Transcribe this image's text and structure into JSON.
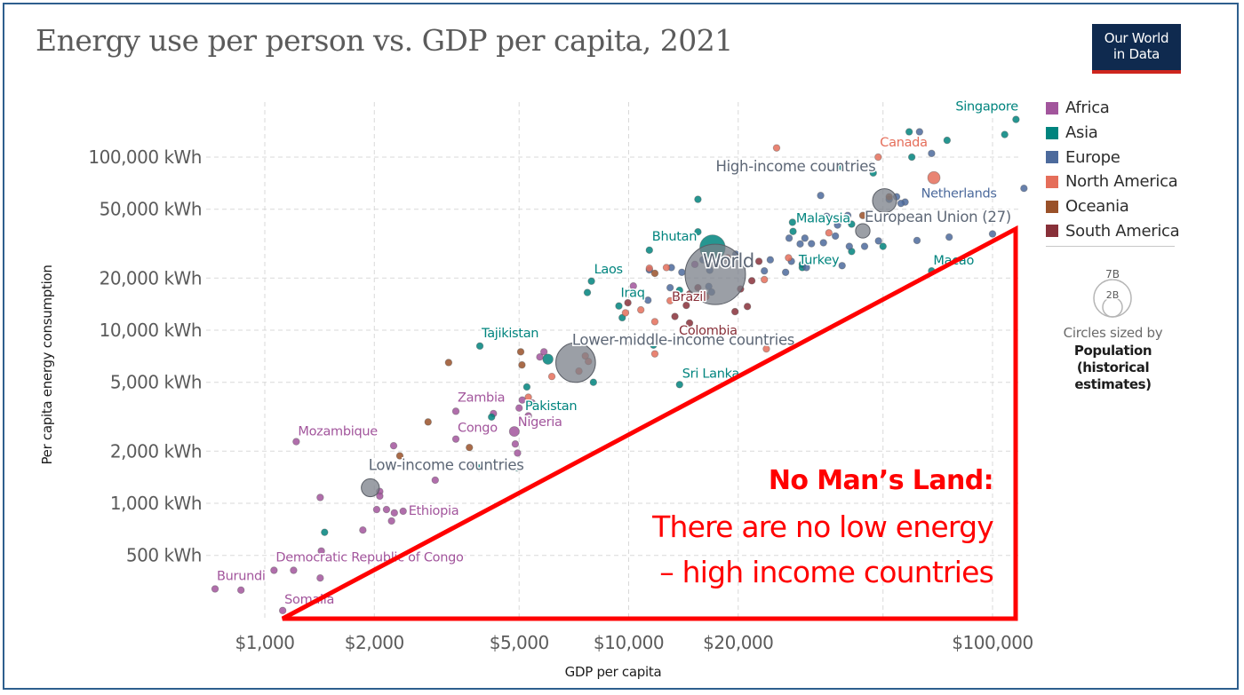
{
  "title": "Energy use per person vs. GDP per capita, 2021",
  "logo": {
    "line1": "Our World",
    "line2": "in Data"
  },
  "legend": {
    "items": [
      {
        "label": "Africa",
        "color": "#a2559c"
      },
      {
        "label": "Asia",
        "color": "#00847e"
      },
      {
        "label": "Europe",
        "color": "#4c6a9c"
      },
      {
        "label": "North America",
        "color": "#e56e5a"
      },
      {
        "label": "Oceania",
        "color": "#9a5129"
      },
      {
        "label": "South America",
        "color": "#883039"
      }
    ],
    "size_legend": {
      "large": "7B",
      "small": "2B",
      "caption": "Circles sized by",
      "variable_line1": "Population",
      "variable_line2": "(historical",
      "variable_line3": "estimates)"
    }
  },
  "annotation": {
    "heading": "No Man’s Land:",
    "line1": "There are no low energy",
    "line2": "– high income countries",
    "color": "#ff0000"
  },
  "chart_data": {
    "type": "scatter",
    "title": "Energy use per person vs. GDP per capita, 2021",
    "xlabel": "GDP per capita",
    "ylabel": "Per capita energy consumption",
    "x_scale": "log",
    "y_scale": "log",
    "xlim": [
      700,
      130000
    ],
    "ylim": [
      230,
      190000
    ],
    "x_ticks": [
      {
        "value": 1000,
        "label": "$1,000"
      },
      {
        "value": 2000,
        "label": "$2,000"
      },
      {
        "value": 5000,
        "label": "$5,000"
      },
      {
        "value": 10000,
        "label": "$10,000"
      },
      {
        "value": 20000,
        "label": "$20,000"
      },
      {
        "value": 100000,
        "label": "$100,000"
      }
    ],
    "y_ticks": [
      {
        "value": 100000,
        "label": "100,000 kWh"
      },
      {
        "value": 50000,
        "label": "50,000 kWh"
      },
      {
        "value": 20000,
        "label": "20,000 kWh"
      },
      {
        "value": 10000,
        "label": "10,000 kWh"
      },
      {
        "value": 5000,
        "label": "5,000 kWh"
      },
      {
        "value": 2000,
        "label": "2,000 kWh"
      },
      {
        "value": 1000,
        "label": "1,000 kWh"
      },
      {
        "value": 500,
        "label": "500 kWh"
      }
    ],
    "x_grid_values": [
      1000,
      2000,
      5000,
      10000,
      20000,
      50000,
      100000
    ],
    "grid": true,
    "legend_position": "right",
    "size_variable": "Population (historical estimates)",
    "aggregates": [
      {
        "name": "World",
        "x": 17300,
        "y": 21000,
        "pop": 7900000000,
        "label_offset": "above-right"
      },
      {
        "name": "High-income countries",
        "x": 50500,
        "y": 56000,
        "pop": 1250000000
      },
      {
        "name": "European Union (27)",
        "x": 44000,
        "y": 37500,
        "pop": 450000000
      },
      {
        "name": "Lower-middle-income countries",
        "x": 7150,
        "y": 6500,
        "pop": 3400000000
      },
      {
        "name": "Low-income countries",
        "x": 1950,
        "y": 1230,
        "pop": 700000000
      }
    ],
    "series": [
      {
        "name": "Africa",
        "points": [
          {
            "label": "Mozambique",
            "x": 1220,
            "y": 2270
          },
          {
            "label": "Zambia",
            "x": 3350,
            "y": 3400
          },
          {
            "label": "Congo",
            "x": 3350,
            "y": 2350
          },
          {
            "label": "Nigeria",
            "x": 4850,
            "y": 2600,
            "pop": 213000000
          },
          {
            "label": "Ethiopia",
            "x": 2400,
            "y": 900
          },
          {
            "label": "Democratic Republic of Congo",
            "x": 1060,
            "y": 410
          },
          {
            "label": "Burundi",
            "x": 730,
            "y": 320
          },
          {
            "label": "Somalia",
            "x": 1120,
            "y": 240
          },
          {
            "x": 860,
            "y": 315
          },
          {
            "x": 1200,
            "y": 410
          },
          {
            "x": 1430,
            "y": 530
          },
          {
            "x": 1420,
            "y": 370
          },
          {
            "x": 1860,
            "y": 700
          },
          {
            "x": 1420,
            "y": 1080
          },
          {
            "x": 2070,
            "y": 1170
          },
          {
            "x": 2070,
            "y": 1100
          },
          {
            "x": 2030,
            "y": 920
          },
          {
            "x": 2160,
            "y": 920
          },
          {
            "x": 2270,
            "y": 880
          },
          {
            "x": 2230,
            "y": 790
          },
          {
            "x": 2260,
            "y": 2150
          },
          {
            "x": 2940,
            "y": 1360
          },
          {
            "x": 4250,
            "y": 3300
          },
          {
            "x": 4880,
            "y": 2200
          },
          {
            "x": 4950,
            "y": 1950
          },
          {
            "x": 5100,
            "y": 3950
          },
          {
            "x": 5000,
            "y": 3550
          },
          {
            "x": 3760,
            "y": 1650
          },
          {
            "x": 5430,
            "y": 3800
          },
          {
            "x": 5300,
            "y": 3200
          },
          {
            "x": 5700,
            "y": 7000
          },
          {
            "x": 5850,
            "y": 7500
          },
          {
            "x": 10300,
            "y": 18000
          },
          {
            "x": 15200,
            "y": 24000
          },
          {
            "x": 17800,
            "y": 25500
          }
        ]
      },
      {
        "name": "Asia",
        "points": [
          {
            "label": "Singapore",
            "x": 116000,
            "y": 165000
          },
          {
            "label": "Malaysia",
            "x": 28200,
            "y": 42000
          },
          {
            "label": "Bhutan",
            "x": 11400,
            "y": 29000
          },
          {
            "label": "Laos",
            "x": 7900,
            "y": 19200
          },
          {
            "label": "Iraq",
            "x": 9400,
            "y": 13800
          },
          {
            "label": "Tajikistan",
            "x": 3900,
            "y": 8100
          },
          {
            "label": "Pakistan",
            "x": 5250,
            "y": 4700
          },
          {
            "label": "Turkey",
            "x": 30000,
            "y": 23000
          },
          {
            "label": "Macao",
            "x": 68000,
            "y": 22000
          },
          {
            "label": "Sri Lanka",
            "x": 13800,
            "y": 4850
          },
          {
            "x": 1460,
            "y": 680
          },
          {
            "x": 3880,
            "y": 1600
          },
          {
            "x": 4940,
            "y": 1600
          },
          {
            "x": 4200,
            "y": 3150
          },
          {
            "x": 5480,
            "y": 3700
          },
          {
            "x": 6000,
            "y": 6800,
            "pop": 230000000
          },
          {
            "x": 7700,
            "y": 16500
          },
          {
            "x": 8000,
            "y": 5000
          },
          {
            "x": 9600,
            "y": 11800
          },
          {
            "x": 11700,
            "y": 8200
          },
          {
            "x": 15500,
            "y": 57000
          },
          {
            "x": 15500,
            "y": 37000
          },
          {
            "x": 17000,
            "y": 30000,
            "pop": 1410000000
          },
          {
            "x": 13800,
            "y": 17000
          },
          {
            "x": 16200,
            "y": 16000
          },
          {
            "x": 38400,
            "y": 88000
          },
          {
            "x": 46500,
            "y": 90000
          },
          {
            "x": 47000,
            "y": 81000
          },
          {
            "x": 60000,
            "y": 100000
          },
          {
            "x": 59000,
            "y": 140000
          },
          {
            "x": 75000,
            "y": 125000
          },
          {
            "x": 108000,
            "y": 135000
          },
          {
            "x": 28300,
            "y": 37200
          },
          {
            "x": 41000,
            "y": 41000
          },
          {
            "x": 41000,
            "y": 28500
          },
          {
            "x": 50000,
            "y": 30500
          },
          {
            "x": 30000,
            "y": 24000
          }
        ]
      },
      {
        "name": "Europe",
        "points": [
          {
            "label": "Netherlands",
            "x": 57500,
            "y": 55000
          },
          {
            "x": 63000,
            "y": 140000
          },
          {
            "x": 68000,
            "y": 105000
          },
          {
            "x": 52000,
            "y": 57000
          },
          {
            "x": 54500,
            "y": 59000
          },
          {
            "x": 56000,
            "y": 54000
          },
          {
            "x": 122000,
            "y": 66000
          },
          {
            "x": 33700,
            "y": 60000
          },
          {
            "x": 35000,
            "y": 45500
          },
          {
            "x": 37600,
            "y": 44500
          },
          {
            "x": 37500,
            "y": 40500
          },
          {
            "x": 40000,
            "y": 46000
          },
          {
            "x": 37000,
            "y": 35000
          },
          {
            "x": 30500,
            "y": 34000
          },
          {
            "x": 27600,
            "y": 34000
          },
          {
            "x": 29600,
            "y": 31500
          },
          {
            "x": 31800,
            "y": 31600
          },
          {
            "x": 34300,
            "y": 32000
          },
          {
            "x": 40400,
            "y": 30500
          },
          {
            "x": 44500,
            "y": 30500
          },
          {
            "x": 48600,
            "y": 32800
          },
          {
            "x": 62000,
            "y": 33000
          },
          {
            "x": 76000,
            "y": 34500
          },
          {
            "x": 100000,
            "y": 36000
          },
          {
            "x": 24500,
            "y": 25500
          },
          {
            "x": 27000,
            "y": 21600
          },
          {
            "x": 28000,
            "y": 25000
          },
          {
            "x": 30800,
            "y": 23000
          },
          {
            "x": 38600,
            "y": 23600
          },
          {
            "x": 23600,
            "y": 22000
          },
          {
            "x": 19700,
            "y": 27500
          },
          {
            "x": 16700,
            "y": 22200
          },
          {
            "x": 16000,
            "y": 25500
          },
          {
            "x": 14000,
            "y": 21600
          },
          {
            "x": 11300,
            "y": 14900
          },
          {
            "x": 13000,
            "y": 17600
          },
          {
            "x": 16600,
            "y": 17900
          },
          {
            "x": 16900,
            "y": 16600
          },
          {
            "x": 11400,
            "y": 22300
          },
          {
            "x": 13100,
            "y": 23000
          }
        ]
      },
      {
        "name": "North America",
        "points": [
          {
            "label": "Canada",
            "x": 48500,
            "y": 100000
          },
          {
            "x": 69000,
            "y": 76000,
            "pop": 332000000
          },
          {
            "x": 25500,
            "y": 113000
          },
          {
            "x": 35500,
            "y": 36500
          },
          {
            "x": 23600,
            "y": 19600
          },
          {
            "x": 27500,
            "y": 26200
          },
          {
            "x": 12700,
            "y": 23000
          },
          {
            "x": 11400,
            "y": 22800
          },
          {
            "x": 9800,
            "y": 12600
          },
          {
            "x": 10800,
            "y": 13100
          },
          {
            "x": 11800,
            "y": 11200
          },
          {
            "x": 11800,
            "y": 7300
          },
          {
            "x": 13000,
            "y": 14800
          },
          {
            "x": 16300,
            "y": 15600
          },
          {
            "x": 23900,
            "y": 7800
          },
          {
            "x": 7600,
            "y": 7100
          },
          {
            "x": 7300,
            "y": 5800
          },
          {
            "x": 7750,
            "y": 6600
          },
          {
            "x": 5300,
            "y": 4100
          },
          {
            "x": 6150,
            "y": 5400
          },
          {
            "x": 18700,
            "y": 26200
          }
        ]
      },
      {
        "name": "Oceania",
        "points": [
          {
            "x": 52000,
            "y": 59000
          },
          {
            "x": 44000,
            "y": 46000
          },
          {
            "x": 11800,
            "y": 21300
          },
          {
            "x": 3200,
            "y": 6500
          },
          {
            "x": 2810,
            "y": 2950
          },
          {
            "x": 2350,
            "y": 1880
          },
          {
            "x": 3650,
            "y": 2100
          },
          {
            "x": 5090,
            "y": 6300
          },
          {
            "x": 5050,
            "y": 7500
          }
        ]
      },
      {
        "name": "South America",
        "points": [
          {
            "label": "Brazil",
            "x": 14700,
            "y": 16200
          },
          {
            "label": "Colombia",
            "x": 14700,
            "y": 11000
          },
          {
            "x": 13700,
            "y": 15500
          },
          {
            "x": 15500,
            "y": 17600
          },
          {
            "x": 20300,
            "y": 17300
          },
          {
            "x": 21800,
            "y": 19300
          },
          {
            "x": 21200,
            "y": 13700
          },
          {
            "x": 22800,
            "y": 25000
          },
          {
            "x": 19600,
            "y": 12800
          },
          {
            "x": 14400,
            "y": 13900
          },
          {
            "x": 13400,
            "y": 12000
          },
          {
            "x": 9950,
            "y": 14400
          }
        ]
      }
    ]
  }
}
